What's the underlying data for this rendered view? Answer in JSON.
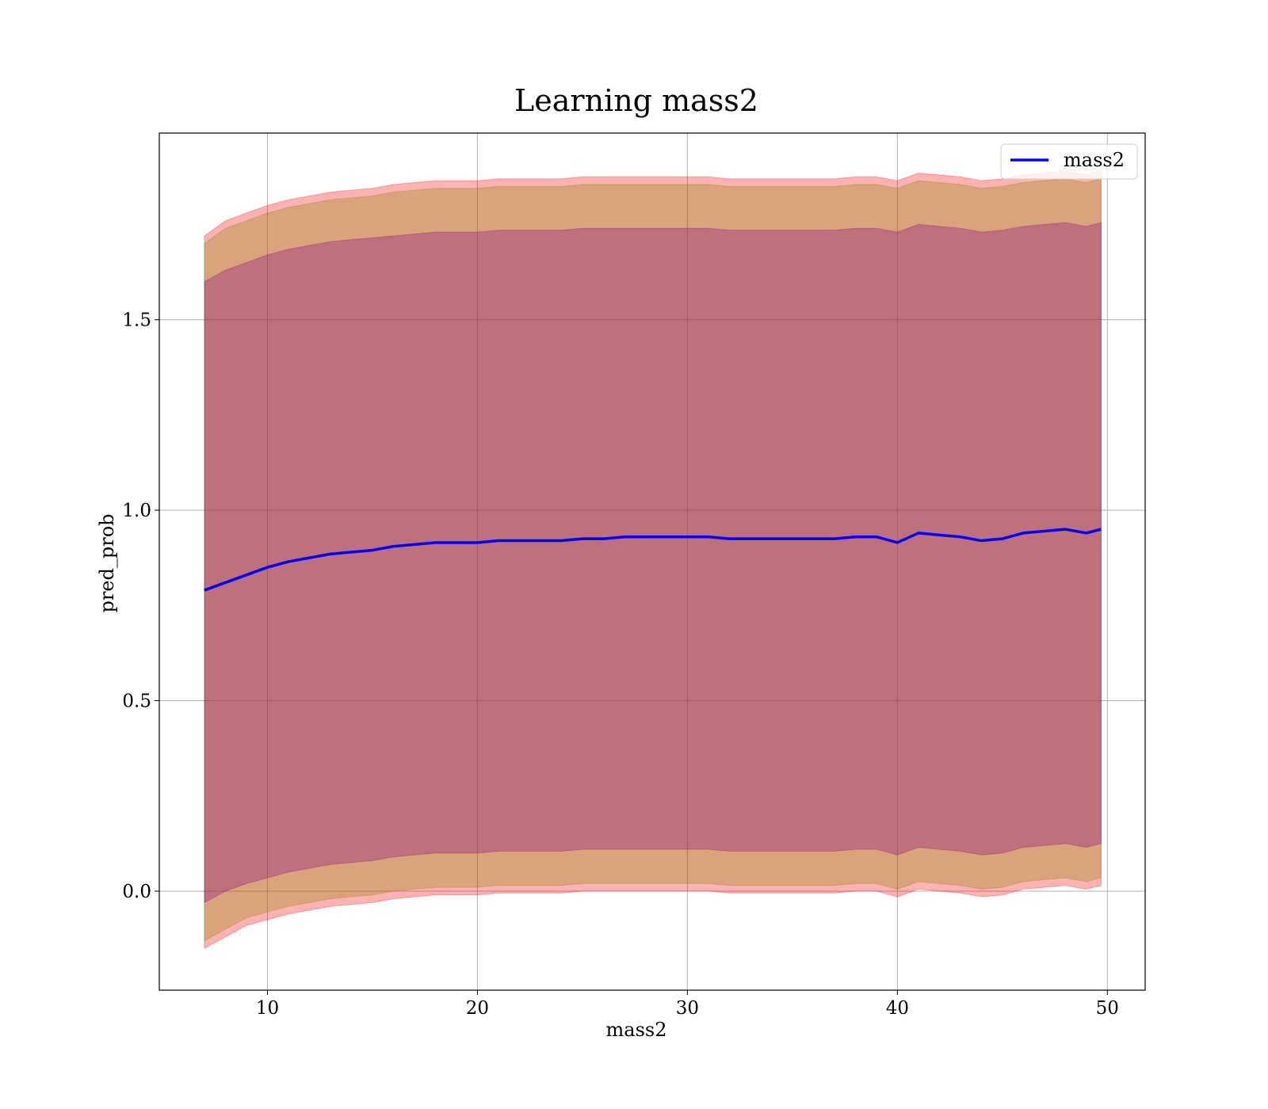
{
  "chart_data": {
    "type": "line",
    "title": "Learning mass2",
    "xlabel": "mass2",
    "ylabel": "pred_prob",
    "xlim": [
      4.85,
      51.8
    ],
    "ylim": [
      -0.26,
      1.99
    ],
    "xticks": [
      10,
      20,
      30,
      40,
      50
    ],
    "yticks": [
      0.0,
      0.5,
      1.0,
      1.5
    ],
    "xtick_labels": [
      "10",
      "20",
      "30",
      "40",
      "50"
    ],
    "ytick_labels": [
      "0.0",
      "0.5",
      "1.0",
      "1.5"
    ],
    "grid": true,
    "legend_position": "top-right",
    "x": [
      7.0,
      8.0,
      9.0,
      10.0,
      11.0,
      12.0,
      13.0,
      14.0,
      15.0,
      16.0,
      17.0,
      18.0,
      19.0,
      20.0,
      21.0,
      22.0,
      23.0,
      24.0,
      25.0,
      26.0,
      27.0,
      28.0,
      29.0,
      30.0,
      31.0,
      32.0,
      33.0,
      34.0,
      35.0,
      36.0,
      37.0,
      38.0,
      39.0,
      40.0,
      41.0,
      42.0,
      43.0,
      44.0,
      45.0,
      46.0,
      47.0,
      48.0,
      49.0,
      49.7
    ],
    "series": [
      {
        "name": "mass2",
        "color": "#0000ff",
        "values": [
          0.79,
          0.81,
          0.83,
          0.85,
          0.865,
          0.875,
          0.885,
          0.89,
          0.895,
          0.905,
          0.91,
          0.915,
          0.915,
          0.915,
          0.92,
          0.92,
          0.92,
          0.92,
          0.925,
          0.925,
          0.93,
          0.93,
          0.93,
          0.93,
          0.93,
          0.925,
          0.925,
          0.925,
          0.925,
          0.925,
          0.925,
          0.93,
          0.93,
          0.915,
          0.94,
          0.935,
          0.93,
          0.92,
          0.925,
          0.94,
          0.945,
          0.95,
          0.94,
          0.95
        ]
      }
    ],
    "bands": [
      {
        "color": "#ff0000",
        "opacity": 0.3,
        "upper": [
          1.72,
          1.76,
          1.78,
          1.8,
          1.815,
          1.825,
          1.835,
          1.84,
          1.845,
          1.855,
          1.86,
          1.865,
          1.865,
          1.865,
          1.87,
          1.87,
          1.87,
          1.87,
          1.875,
          1.875,
          1.875,
          1.875,
          1.875,
          1.875,
          1.875,
          1.87,
          1.87,
          1.87,
          1.87,
          1.87,
          1.87,
          1.875,
          1.875,
          1.865,
          1.885,
          1.88,
          1.875,
          1.865,
          1.87,
          1.88,
          1.885,
          1.89,
          1.88,
          1.89
        ],
        "lower": [
          -0.15,
          -0.12,
          -0.09,
          -0.075,
          -0.06,
          -0.05,
          -0.04,
          -0.035,
          -0.03,
          -0.02,
          -0.015,
          -0.01,
          -0.01,
          -0.01,
          -0.005,
          -0.005,
          -0.005,
          -0.005,
          0.0,
          0.0,
          0.0,
          0.0,
          0.0,
          0.0,
          0.0,
          -0.005,
          -0.005,
          -0.005,
          -0.005,
          -0.005,
          -0.005,
          0.0,
          0.0,
          -0.015,
          0.005,
          0.0,
          -0.005,
          -0.015,
          -0.01,
          0.005,
          0.01,
          0.015,
          0.005,
          0.015
        ]
      },
      {
        "color": "#808000",
        "opacity": 0.3,
        "upper": [
          1.7,
          1.74,
          1.76,
          1.78,
          1.795,
          1.805,
          1.815,
          1.82,
          1.825,
          1.835,
          1.84,
          1.845,
          1.845,
          1.845,
          1.85,
          1.85,
          1.85,
          1.85,
          1.855,
          1.855,
          1.855,
          1.855,
          1.855,
          1.855,
          1.855,
          1.85,
          1.85,
          1.85,
          1.85,
          1.85,
          1.85,
          1.855,
          1.855,
          1.845,
          1.865,
          1.86,
          1.855,
          1.845,
          1.85,
          1.86,
          1.865,
          1.87,
          1.86,
          1.87
        ],
        "lower": [
          -0.13,
          -0.1,
          -0.07,
          -0.055,
          -0.04,
          -0.03,
          -0.02,
          -0.015,
          -0.01,
          0.0,
          0.005,
          0.01,
          0.01,
          0.01,
          0.015,
          0.015,
          0.015,
          0.015,
          0.02,
          0.02,
          0.02,
          0.02,
          0.02,
          0.02,
          0.02,
          0.015,
          0.015,
          0.015,
          0.015,
          0.015,
          0.015,
          0.02,
          0.02,
          0.005,
          0.025,
          0.02,
          0.015,
          0.005,
          0.01,
          0.025,
          0.03,
          0.035,
          0.025,
          0.035
        ]
      },
      {
        "color": "#800080",
        "opacity": 0.3,
        "upper": [
          1.6,
          1.63,
          1.65,
          1.67,
          1.685,
          1.695,
          1.705,
          1.71,
          1.715,
          1.72,
          1.725,
          1.73,
          1.73,
          1.73,
          1.735,
          1.735,
          1.735,
          1.735,
          1.74,
          1.74,
          1.74,
          1.74,
          1.74,
          1.74,
          1.74,
          1.735,
          1.735,
          1.735,
          1.735,
          1.735,
          1.735,
          1.74,
          1.74,
          1.73,
          1.75,
          1.745,
          1.74,
          1.73,
          1.735,
          1.745,
          1.75,
          1.755,
          1.745,
          1.755
        ],
        "lower": [
          -0.03,
          0.0,
          0.02,
          0.035,
          0.05,
          0.06,
          0.07,
          0.075,
          0.08,
          0.09,
          0.095,
          0.1,
          0.1,
          0.1,
          0.105,
          0.105,
          0.105,
          0.105,
          0.11,
          0.11,
          0.11,
          0.11,
          0.11,
          0.11,
          0.11,
          0.105,
          0.105,
          0.105,
          0.105,
          0.105,
          0.105,
          0.11,
          0.11,
          0.095,
          0.115,
          0.11,
          0.105,
          0.095,
          0.1,
          0.115,
          0.12,
          0.125,
          0.115,
          0.125
        ]
      }
    ]
  }
}
